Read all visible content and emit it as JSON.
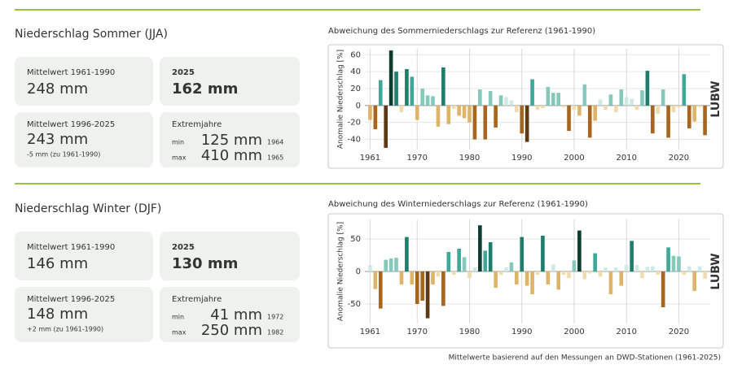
{
  "sections": [
    {
      "title": "Niederschlag Sommer (JJA)",
      "cards": {
        "reference": {
          "label": "Mittelwert 1961-1990",
          "value": "248 mm"
        },
        "current": {
          "label": "2025",
          "value": "162 mm"
        },
        "recent": {
          "label": "Mittelwert 1996-2025",
          "value": "243 mm",
          "note": "-5 mm (zu 1961-1990)"
        },
        "extremes": {
          "label": "Extremjahre",
          "min": {
            "label": "min",
            "value": "125 mm",
            "year": "1964"
          },
          "max": {
            "label": "max",
            "value": "410 mm",
            "year": "1965"
          }
        }
      }
    },
    {
      "title": "Niederschlag Winter (DJF)",
      "cards": {
        "reference": {
          "label": "Mittelwert 1961-1990",
          "value": "146 mm"
        },
        "current": {
          "label": "2025",
          "value": "130 mm"
        },
        "recent": {
          "label": "Mittelwert 1996-2025",
          "value": "148 mm",
          "note": "+2 mm (zu 1961-1990)"
        },
        "extremes": {
          "label": "Extremjahre",
          "min": {
            "label": "min",
            "value": "41 mm",
            "year": "1972"
          },
          "max": {
            "label": "max",
            "value": "250 mm",
            "year": "1982"
          }
        }
      }
    }
  ],
  "chart_data": [
    {
      "type": "bar",
      "title": "Abweichung des Sommerniederschlags zur Referenz (1961-1990)",
      "y_label": "Anomalie Niederschlag [%]",
      "watermark": "LUBW",
      "x": [
        1961,
        1962,
        1963,
        1964,
        1965,
        1966,
        1967,
        1968,
        1969,
        1970,
        1971,
        1972,
        1973,
        1974,
        1975,
        1976,
        1977,
        1978,
        1979,
        1980,
        1981,
        1982,
        1983,
        1984,
        1985,
        1986,
        1987,
        1988,
        1989,
        1990,
        1991,
        1992,
        1993,
        1994,
        1995,
        1996,
        1997,
        1998,
        1999,
        2000,
        2001,
        2002,
        2003,
        2004,
        2005,
        2006,
        2007,
        2008,
        2009,
        2010,
        2011,
        2012,
        2013,
        2014,
        2015,
        2016,
        2017,
        2018,
        2019,
        2020,
        2021,
        2022,
        2023,
        2024,
        2025
      ],
      "series": [
        {
          "values": [
            -17,
            -28,
            30,
            -50,
            65,
            40,
            -8,
            43,
            34,
            -17,
            20,
            12,
            11,
            -25,
            45,
            -22,
            -4,
            -12,
            -15,
            -20,
            -40,
            19,
            -40,
            17,
            -26,
            12,
            10,
            6,
            -8,
            -33,
            -43,
            31,
            -5,
            -3,
            22,
            15,
            15,
            -2,
            -30,
            -5,
            -12,
            25,
            -38,
            -18,
            7,
            -5,
            13,
            -8,
            19,
            10,
            8,
            -5,
            18,
            41,
            -33,
            -10,
            19,
            -38,
            -8,
            -2,
            37,
            -27,
            -19,
            -2,
            -35
          ],
          "colors": [
            "#deb36a",
            "#a8651e",
            "#3fa898",
            "#5e3a14",
            "#0e3d2f",
            "#1f7d6c",
            "#efdcae",
            "#1f7d6c",
            "#3fa898",
            "#deb36a",
            "#86c9ba",
            "#86c9ba",
            "#86c9ba",
            "#deb36a",
            "#1f7d6c",
            "#deb36a",
            "#efdcae",
            "#deb36a",
            "#deb36a",
            "#deb36a",
            "#a8651e",
            "#86c9ba",
            "#a8651e",
            "#86c9ba",
            "#a8651e",
            "#86c9ba",
            "#cfeae3",
            "#cfeae3",
            "#efdcae",
            "#a8651e",
            "#5e3a14",
            "#3fa898",
            "#efdcae",
            "#efdcae",
            "#86c9ba",
            "#86c9ba",
            "#86c9ba",
            "#efdcae",
            "#a8651e",
            "#efdcae",
            "#deb36a",
            "#86c9ba",
            "#a8651e",
            "#deb36a",
            "#cfeae3",
            "#efdcae",
            "#86c9ba",
            "#efdcae",
            "#86c9ba",
            "#cfeae3",
            "#cfeae3",
            "#efdcae",
            "#86c9ba",
            "#1f7d6c",
            "#a8651e",
            "#efdcae",
            "#86c9ba",
            "#a8651e",
            "#efdcae",
            "#efdcae",
            "#3fa898",
            "#a8651e",
            "#deb36a",
            "#efdcae",
            "#a8651e"
          ]
        }
      ],
      "xlim": [
        1960,
        2026
      ],
      "xticks": [
        1961,
        1970,
        1980,
        1990,
        2000,
        2010,
        2020
      ],
      "ylim": [
        -52,
        67
      ],
      "yticks": [
        -40,
        -20,
        0,
        20,
        40,
        60
      ],
      "grid": true
    },
    {
      "type": "bar",
      "title": "Abweichung des Winterniederschlags zur Referenz (1961-1990)",
      "y_label": "Anomalie Niederschlag [%]",
      "watermark": "LUBW",
      "x": [
        1961,
        1962,
        1963,
        1964,
        1965,
        1966,
        1967,
        1968,
        1969,
        1970,
        1971,
        1972,
        1973,
        1974,
        1975,
        1976,
        1977,
        1978,
        1979,
        1980,
        1981,
        1982,
        1983,
        1984,
        1985,
        1986,
        1987,
        1988,
        1989,
        1990,
        1991,
        1992,
        1993,
        1994,
        1995,
        1996,
        1997,
        1998,
        1999,
        2000,
        2001,
        2002,
        2003,
        2004,
        2005,
        2006,
        2007,
        2008,
        2009,
        2010,
        2011,
        2012,
        2013,
        2014,
        2015,
        2016,
        2017,
        2018,
        2019,
        2020,
        2021,
        2022,
        2023,
        2024,
        2025
      ],
      "series": [
        {
          "values": [
            10,
            -27,
            -57,
            18,
            20,
            21,
            -20,
            53,
            -20,
            -50,
            -45,
            -72,
            -20,
            -8,
            -53,
            30,
            -5,
            35,
            22,
            -10,
            6,
            71,
            32,
            45,
            -25,
            -5,
            6,
            14,
            -20,
            53,
            -22,
            -35,
            -5,
            55,
            -20,
            11,
            -28,
            -5,
            -10,
            17,
            63,
            -12,
            -3,
            28,
            -8,
            6,
            -35,
            6,
            -22,
            10,
            47,
            10,
            -10,
            7,
            8,
            -5,
            -55,
            37,
            24,
            23,
            -5,
            8,
            -30,
            8,
            -11
          ],
          "colors": [
            "#cfeae3",
            "#deb36a",
            "#a8651e",
            "#86c9ba",
            "#86c9ba",
            "#86c9ba",
            "#deb36a",
            "#1f7d6c",
            "#deb36a",
            "#a8651e",
            "#a8651e",
            "#5e3a14",
            "#deb36a",
            "#efdcae",
            "#a8651e",
            "#3fa898",
            "#efdcae",
            "#3fa898",
            "#86c9ba",
            "#efdcae",
            "#cfeae3",
            "#0e3d2f",
            "#3fa898",
            "#1f7d6c",
            "#deb36a",
            "#efdcae",
            "#cfeae3",
            "#86c9ba",
            "#deb36a",
            "#1f7d6c",
            "#deb36a",
            "#deb36a",
            "#efdcae",
            "#1f7d6c",
            "#deb36a",
            "#cfeae3",
            "#deb36a",
            "#efdcae",
            "#efdcae",
            "#86c9ba",
            "#0e3d2f",
            "#efdcae",
            "#efdcae",
            "#3fa898",
            "#efdcae",
            "#cfeae3",
            "#deb36a",
            "#cfeae3",
            "#deb36a",
            "#cfeae3",
            "#1f7d6c",
            "#cfeae3",
            "#efdcae",
            "#cfeae3",
            "#cfeae3",
            "#efdcae",
            "#a8651e",
            "#3fa898",
            "#86c9ba",
            "#86c9ba",
            "#efdcae",
            "#cfeae3",
            "#deb36a",
            "#cfeae3",
            "#efdcae"
          ]
        }
      ],
      "xlim": [
        1960,
        2026
      ],
      "xticks": [
        1961,
        1970,
        1980,
        1990,
        2000,
        2010,
        2020
      ],
      "ylim": [
        -80,
        80
      ],
      "yticks": [
        -50,
        0,
        50
      ],
      "grid": true
    }
  ],
  "footer": "Mittelwerte basierend auf den Messungen an DWD-Stationen (1961-2025)"
}
